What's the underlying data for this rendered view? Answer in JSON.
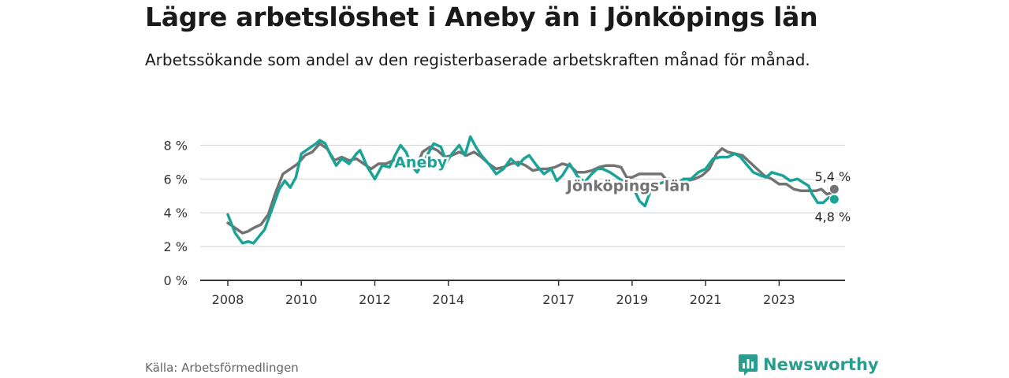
{
  "header": {
    "title": "Lägre arbetslöshet i Aneby än i Jönköpings län",
    "subtitle": "Arbetssökande som andel av den registerbaserade arbetskraften månad för månad."
  },
  "footer": {
    "source": "Källa: Arbetsförmedlingen",
    "brand": "Newsworthy"
  },
  "colors": {
    "aneby": "#1aa397",
    "lan": "#737373",
    "brand": "#2a9d8f"
  },
  "icons": {
    "brand_logo": "bar-chart-icon"
  },
  "chart_data": {
    "type": "line",
    "title": "Lägre arbetslöshet i Aneby än i Jönköpings län",
    "ylim": [
      0,
      9
    ],
    "yticks": [
      0,
      2,
      4,
      6,
      8
    ],
    "ytick_labels": [
      "0 %",
      "2 %",
      "4 %",
      "6 %",
      "8 %"
    ],
    "xlim": [
      2008.0,
      2024.0
    ],
    "xticks": [
      2008,
      2010,
      2012,
      2014,
      2017,
      2019,
      2021,
      2023
    ],
    "xtick_labels": [
      "2008",
      "2010",
      "2012",
      "2014",
      "2017",
      "2019",
      "2021",
      "2023"
    ],
    "series": [
      {
        "name": "Aneby",
        "label": "Aneby",
        "color": "#1aa397",
        "end_label": "4,8 %",
        "points": [
          [
            2008.0,
            3.9
          ],
          [
            2008.2,
            2.8
          ],
          [
            2008.4,
            2.2
          ],
          [
            2008.55,
            2.3
          ],
          [
            2008.7,
            2.2
          ],
          [
            2009.0,
            3.0
          ],
          [
            2009.2,
            4.2
          ],
          [
            2009.4,
            5.4
          ],
          [
            2009.55,
            5.9
          ],
          [
            2009.7,
            5.5
          ],
          [
            2009.85,
            6.1
          ],
          [
            2010.0,
            7.5
          ],
          [
            2010.2,
            7.8
          ],
          [
            2010.4,
            8.1
          ],
          [
            2010.5,
            8.3
          ],
          [
            2010.65,
            8.1
          ],
          [
            2010.8,
            7.4
          ],
          [
            2010.95,
            6.8
          ],
          [
            2011.1,
            7.2
          ],
          [
            2011.3,
            6.9
          ],
          [
            2011.5,
            7.5
          ],
          [
            2011.6,
            7.7
          ],
          [
            2011.8,
            6.7
          ],
          [
            2012.0,
            6.0
          ],
          [
            2012.2,
            6.8
          ],
          [
            2012.4,
            6.7
          ],
          [
            2012.55,
            7.4
          ],
          [
            2012.7,
            8.0
          ],
          [
            2012.85,
            7.6
          ],
          [
            2013.0,
            6.8
          ],
          [
            2013.15,
            6.4
          ],
          [
            2013.35,
            7.1
          ],
          [
            2013.5,
            7.7
          ],
          [
            2013.6,
            8.1
          ],
          [
            2013.8,
            7.9
          ],
          [
            2013.95,
            7.0
          ],
          [
            2014.1,
            7.5
          ],
          [
            2014.3,
            8.0
          ],
          [
            2014.45,
            7.4
          ],
          [
            2014.6,
            8.5
          ],
          [
            2014.75,
            7.9
          ],
          [
            2014.9,
            7.4
          ],
          [
            2015.1,
            6.9
          ],
          [
            2015.3,
            6.3
          ],
          [
            2015.5,
            6.6
          ],
          [
            2015.7,
            7.2
          ],
          [
            2015.9,
            6.8
          ],
          [
            2016.05,
            7.2
          ],
          [
            2016.2,
            7.4
          ],
          [
            2016.4,
            6.8
          ],
          [
            2016.6,
            6.3
          ],
          [
            2016.8,
            6.6
          ],
          [
            2016.95,
            5.9
          ],
          [
            2017.1,
            6.2
          ],
          [
            2017.3,
            6.9
          ],
          [
            2017.5,
            6.2
          ],
          [
            2017.7,
            5.8
          ],
          [
            2017.9,
            6.3
          ],
          [
            2018.05,
            6.6
          ],
          [
            2018.2,
            6.6
          ],
          [
            2018.4,
            6.4
          ],
          [
            2018.6,
            6.1
          ],
          [
            2018.8,
            5.8
          ],
          [
            2019.05,
            5.4
          ],
          [
            2019.2,
            4.7
          ],
          [
            2019.35,
            4.4
          ],
          [
            2019.5,
            5.3
          ],
          [
            2019.7,
            5.7
          ],
          [
            2019.85,
            5.8
          ],
          [
            2020.0,
            6.0
          ],
          [
            2020.2,
            5.7
          ],
          [
            2020.4,
            6.0
          ],
          [
            2020.6,
            6.0
          ],
          [
            2020.8,
            6.4
          ],
          [
            2021.0,
            6.6
          ],
          [
            2021.2,
            7.2
          ],
          [
            2021.4,
            7.3
          ],
          [
            2021.6,
            7.3
          ],
          [
            2021.8,
            7.5
          ],
          [
            2021.95,
            7.3
          ],
          [
            2022.1,
            6.9
          ],
          [
            2022.3,
            6.4
          ],
          [
            2022.5,
            6.2
          ],
          [
            2022.65,
            6.1
          ],
          [
            2022.8,
            6.4
          ],
          [
            2022.95,
            6.3
          ],
          [
            2023.1,
            6.2
          ],
          [
            2023.3,
            5.9
          ],
          [
            2023.5,
            6.0
          ],
          [
            2023.65,
            5.8
          ],
          [
            2023.8,
            5.6
          ],
          [
            2023.9,
            5.1
          ],
          [
            2024.05,
            4.6
          ],
          [
            2024.2,
            4.6
          ],
          [
            2024.35,
            4.9
          ],
          [
            2024.5,
            4.8
          ]
        ]
      },
      {
        "name": "Jönköpings län",
        "label": "Jönköpings län",
        "color": "#737373",
        "end_label": "5,4 %",
        "points": [
          [
            2008.0,
            3.4
          ],
          [
            2008.2,
            3.1
          ],
          [
            2008.4,
            2.8
          ],
          [
            2008.55,
            2.9
          ],
          [
            2008.7,
            3.1
          ],
          [
            2008.9,
            3.3
          ],
          [
            2009.1,
            3.9
          ],
          [
            2009.3,
            5.2
          ],
          [
            2009.5,
            6.3
          ],
          [
            2009.7,
            6.6
          ],
          [
            2009.9,
            6.9
          ],
          [
            2010.1,
            7.4
          ],
          [
            2010.3,
            7.6
          ],
          [
            2010.5,
            8.1
          ],
          [
            2010.7,
            7.8
          ],
          [
            2010.9,
            7.1
          ],
          [
            2011.1,
            7.3
          ],
          [
            2011.3,
            7.1
          ],
          [
            2011.5,
            7.2
          ],
          [
            2011.7,
            6.9
          ],
          [
            2011.9,
            6.6
          ],
          [
            2012.1,
            6.9
          ],
          [
            2012.3,
            6.9
          ],
          [
            2012.5,
            7.1
          ],
          [
            2012.7,
            7.1
          ],
          [
            2012.9,
            6.8
          ],
          [
            2013.1,
            6.6
          ],
          [
            2013.3,
            7.6
          ],
          [
            2013.5,
            7.9
          ],
          [
            2013.7,
            7.7
          ],
          [
            2013.9,
            7.3
          ],
          [
            2014.1,
            7.4
          ],
          [
            2014.3,
            7.6
          ],
          [
            2014.5,
            7.4
          ],
          [
            2014.7,
            7.6
          ],
          [
            2014.9,
            7.3
          ],
          [
            2015.1,
            6.9
          ],
          [
            2015.3,
            6.6
          ],
          [
            2015.5,
            6.7
          ],
          [
            2015.7,
            6.9
          ],
          [
            2015.9,
            7.0
          ],
          [
            2016.1,
            6.8
          ],
          [
            2016.3,
            6.5
          ],
          [
            2016.5,
            6.6
          ],
          [
            2016.7,
            6.6
          ],
          [
            2016.9,
            6.7
          ],
          [
            2017.1,
            6.9
          ],
          [
            2017.3,
            6.8
          ],
          [
            2017.5,
            6.4
          ],
          [
            2017.7,
            6.4
          ],
          [
            2017.9,
            6.5
          ],
          [
            2018.1,
            6.7
          ],
          [
            2018.3,
            6.8
          ],
          [
            2018.5,
            6.8
          ],
          [
            2018.7,
            6.7
          ],
          [
            2018.85,
            6.1
          ],
          [
            2019.0,
            6.1
          ],
          [
            2019.2,
            6.3
          ],
          [
            2019.4,
            6.3
          ],
          [
            2019.6,
            6.3
          ],
          [
            2019.8,
            6.3
          ],
          [
            2019.95,
            5.9
          ],
          [
            2020.1,
            5.7
          ],
          [
            2020.3,
            5.8
          ],
          [
            2020.5,
            5.9
          ],
          [
            2020.7,
            6.0
          ],
          [
            2020.9,
            6.2
          ],
          [
            2021.1,
            6.6
          ],
          [
            2021.3,
            7.5
          ],
          [
            2021.45,
            7.8
          ],
          [
            2021.6,
            7.6
          ],
          [
            2021.8,
            7.5
          ],
          [
            2022.0,
            7.4
          ],
          [
            2022.2,
            7.0
          ],
          [
            2022.4,
            6.6
          ],
          [
            2022.6,
            6.2
          ],
          [
            2022.8,
            6.0
          ],
          [
            2023.0,
            5.7
          ],
          [
            2023.2,
            5.7
          ],
          [
            2023.4,
            5.4
          ],
          [
            2023.6,
            5.3
          ],
          [
            2023.8,
            5.3
          ],
          [
            2024.0,
            5.3
          ],
          [
            2024.15,
            5.4
          ],
          [
            2024.3,
            5.1
          ],
          [
            2024.45,
            5.2
          ],
          [
            2024.5,
            5.4
          ]
        ]
      }
    ]
  }
}
